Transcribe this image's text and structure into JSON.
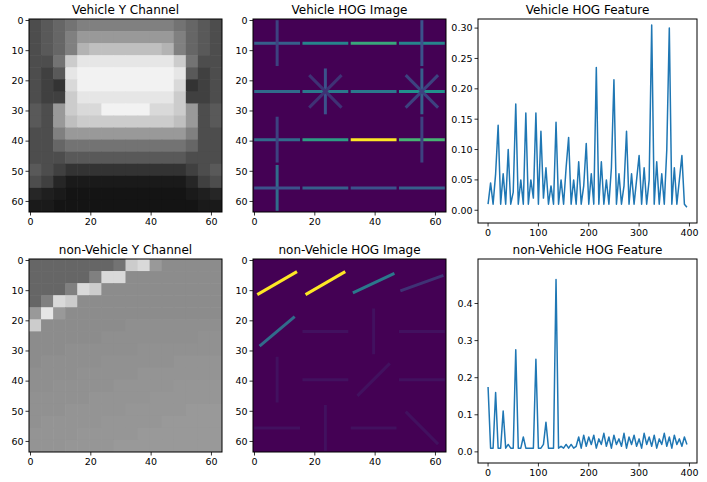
{
  "chart_data": [
    {
      "type": "heatmap",
      "title": "Vehicle Y Channel",
      "color": "gray",
      "xlim": [
        -0.5,
        63.5
      ],
      "ylim": [
        63.5,
        -0.5
      ],
      "xticks": [
        0,
        20,
        40,
        60
      ],
      "yticks": [
        0,
        10,
        20,
        30,
        40,
        50,
        60
      ],
      "cells": [
        [
          0.3,
          0.35,
          0.4,
          0.45,
          0.5,
          0.5,
          0.5,
          0.5,
          0.5,
          0.5,
          0.5,
          0.5,
          0.45,
          0.4,
          0.35,
          0.3
        ],
        [
          0.3,
          0.35,
          0.4,
          0.5,
          0.6,
          0.6,
          0.6,
          0.6,
          0.6,
          0.6,
          0.6,
          0.6,
          0.5,
          0.4,
          0.35,
          0.3
        ],
        [
          0.3,
          0.35,
          0.4,
          0.5,
          0.7,
          0.75,
          0.75,
          0.75,
          0.75,
          0.75,
          0.75,
          0.7,
          0.5,
          0.4,
          0.35,
          0.3
        ],
        [
          0.3,
          0.3,
          0.45,
          0.8,
          0.9,
          0.9,
          0.9,
          0.9,
          0.9,
          0.9,
          0.9,
          0.9,
          0.8,
          0.45,
          0.3,
          0.3
        ],
        [
          0.3,
          0.25,
          0.35,
          0.9,
          0.95,
          0.95,
          0.95,
          0.95,
          0.95,
          0.95,
          0.95,
          0.95,
          0.9,
          0.35,
          0.25,
          0.3
        ],
        [
          0.3,
          0.25,
          0.2,
          0.85,
          0.95,
          0.95,
          0.95,
          0.95,
          0.95,
          0.95,
          0.95,
          0.95,
          0.85,
          0.2,
          0.25,
          0.3
        ],
        [
          0.3,
          0.25,
          0.25,
          0.8,
          0.9,
          0.9,
          0.9,
          0.9,
          0.9,
          0.9,
          0.9,
          0.9,
          0.8,
          0.25,
          0.25,
          0.3
        ],
        [
          0.35,
          0.3,
          0.6,
          0.8,
          0.85,
          0.85,
          0.95,
          0.95,
          0.95,
          0.95,
          0.85,
          0.85,
          0.8,
          0.6,
          0.3,
          0.35
        ],
        [
          0.35,
          0.3,
          0.6,
          0.75,
          0.8,
          0.8,
          0.8,
          0.8,
          0.8,
          0.8,
          0.8,
          0.8,
          0.75,
          0.6,
          0.3,
          0.35
        ],
        [
          0.3,
          0.3,
          0.5,
          0.6,
          0.6,
          0.6,
          0.6,
          0.6,
          0.6,
          0.6,
          0.6,
          0.6,
          0.6,
          0.5,
          0.3,
          0.3
        ],
        [
          0.3,
          0.3,
          0.4,
          0.45,
          0.45,
          0.45,
          0.45,
          0.45,
          0.45,
          0.45,
          0.45,
          0.45,
          0.45,
          0.4,
          0.3,
          0.3
        ],
        [
          0.3,
          0.3,
          0.3,
          0.35,
          0.35,
          0.35,
          0.35,
          0.35,
          0.35,
          0.35,
          0.35,
          0.35,
          0.35,
          0.3,
          0.3,
          0.3
        ],
        [
          0.35,
          0.3,
          0.25,
          0.2,
          0.2,
          0.2,
          0.2,
          0.2,
          0.2,
          0.2,
          0.2,
          0.2,
          0.2,
          0.25,
          0.3,
          0.35
        ],
        [
          0.3,
          0.25,
          0.15,
          0.1,
          0.1,
          0.1,
          0.1,
          0.1,
          0.1,
          0.1,
          0.1,
          0.1,
          0.1,
          0.15,
          0.25,
          0.3
        ],
        [
          0.15,
          0.12,
          0.1,
          0.08,
          0.08,
          0.08,
          0.08,
          0.08,
          0.08,
          0.08,
          0.08,
          0.08,
          0.08,
          0.1,
          0.12,
          0.15
        ],
        [
          0.1,
          0.1,
          0.08,
          0.08,
          0.08,
          0.08,
          0.08,
          0.08,
          0.08,
          0.08,
          0.08,
          0.08,
          0.08,
          0.08,
          0.1,
          0.1
        ]
      ]
    },
    {
      "type": "hog",
      "title": "Vehicle HOG Image",
      "color": "viridis",
      "xlim": [
        -0.5,
        63.5
      ],
      "ylim": [
        63.5,
        -0.5
      ],
      "xticks": [
        0,
        20,
        40,
        60
      ],
      "yticks": [
        0,
        10,
        20,
        30,
        40,
        50,
        60
      ],
      "cells": [
        [
          [
            [
              0,
              0.3
            ],
            [
              90,
              0.2
            ]
          ],
          [
            [
              0,
              0.45
            ]
          ],
          [
            [
              0,
              0.6
            ]
          ],
          [
            [
              0,
              0.45
            ],
            [
              90,
              0.25
            ]
          ]
        ],
        [
          [
            [
              0,
              0.35
            ]
          ],
          [
            [
              0,
              0.4
            ],
            [
              90,
              0.25
            ],
            [
              45,
              0.15
            ],
            [
              135,
              0.15
            ]
          ],
          [
            [
              0,
              0.4
            ]
          ],
          [
            [
              0,
              0.5
            ],
            [
              90,
              0.3
            ],
            [
              45,
              0.2
            ],
            [
              135,
              0.2
            ]
          ]
        ],
        [
          [
            [
              0,
              0.35
            ],
            [
              90,
              0.2
            ]
          ],
          [
            [
              0,
              0.55
            ]
          ],
          [
            [
              0,
              1.0
            ]
          ],
          [
            [
              0,
              0.65
            ],
            [
              90,
              0.2
            ]
          ]
        ],
        [
          [
            [
              90,
              0.35
            ],
            [
              0,
              0.25
            ]
          ],
          [
            [
              0,
              0.3
            ]
          ],
          [
            [
              0,
              0.25
            ]
          ],
          [
            [
              0,
              0.3
            ]
          ]
        ]
      ]
    },
    {
      "type": "line",
      "title": "Vehicle HOG Feature",
      "color": "#1f77b4",
      "xlim": [
        -20,
        415
      ],
      "ylim": [
        -0.021,
        0.315
      ],
      "xticks": [
        0,
        100,
        200,
        300,
        400
      ],
      "yticks": [
        {
          "value": 0,
          "label": "0.00"
        },
        {
          "value": 0.05,
          "label": "0.05"
        },
        {
          "value": 0.1,
          "label": "0.10"
        },
        {
          "value": 0.15,
          "label": "0.15"
        },
        {
          "value": 0.2,
          "label": "0.20"
        },
        {
          "value": 0.25,
          "label": "0.25"
        },
        {
          "value": 0.3,
          "label": "0.30"
        }
      ],
      "x": [
        0,
        5,
        10,
        15,
        20,
        25,
        30,
        35,
        40,
        45,
        50,
        55,
        60,
        65,
        70,
        75,
        80,
        85,
        90,
        95,
        100,
        105,
        110,
        115,
        120,
        125,
        130,
        135,
        140,
        145,
        150,
        155,
        160,
        165,
        170,
        175,
        180,
        185,
        190,
        195,
        200,
        205,
        210,
        215,
        220,
        225,
        230,
        235,
        240,
        245,
        250,
        255,
        260,
        265,
        270,
        275,
        280,
        285,
        290,
        295,
        300,
        305,
        310,
        315,
        320,
        325,
        330,
        335,
        340,
        345,
        350,
        355,
        360,
        365,
        370,
        375,
        380,
        385,
        390,
        395
      ],
      "values": [
        0.01,
        0.045,
        0.01,
        0.06,
        0.14,
        0.01,
        0.06,
        0.01,
        0.1,
        0.01,
        0.03,
        0.175,
        0.01,
        0.05,
        0.01,
        0.16,
        0.01,
        0.05,
        0.02,
        0.16,
        0.01,
        0.13,
        0.02,
        0.07,
        0.01,
        0.04,
        0.01,
        0.145,
        0.01,
        0.05,
        0.01,
        0.07,
        0.12,
        0.01,
        0.05,
        0.01,
        0.08,
        0.01,
        0.04,
        0.11,
        0.01,
        0.06,
        0.01,
        0.235,
        0.01,
        0.08,
        0.01,
        0.05,
        0.01,
        0.07,
        0.215,
        0.01,
        0.06,
        0.01,
        0.04,
        0.13,
        0.01,
        0.06,
        0.01,
        0.05,
        0.09,
        0.01,
        0.07,
        0.01,
        0.05,
        0.305,
        0.01,
        0.08,
        0.01,
        0.06,
        0.01,
        0.1,
        0.3,
        0.01,
        0.07,
        0.01,
        0.05,
        0.09,
        0.01,
        0.005
      ]
    },
    {
      "type": "heatmap",
      "title": "non-Vehicle Y Channel",
      "color": "gray",
      "xlim": [
        -0.5,
        63.5
      ],
      "ylim": [
        63.5,
        -0.5
      ],
      "xticks": [
        0,
        20,
        40,
        60
      ],
      "yticks": [
        0,
        10,
        20,
        30,
        40,
        50,
        60
      ],
      "cells": [
        [
          0.4,
          0.4,
          0.4,
          0.4,
          0.4,
          0.4,
          0.4,
          0.45,
          0.8,
          0.85,
          0.6,
          0.55,
          0.55,
          0.55,
          0.55,
          0.55
        ],
        [
          0.4,
          0.4,
          0.4,
          0.4,
          0.4,
          0.5,
          0.85,
          0.85,
          0.55,
          0.55,
          0.55,
          0.55,
          0.55,
          0.55,
          0.55,
          0.55
        ],
        [
          0.4,
          0.4,
          0.4,
          0.5,
          0.85,
          0.8,
          0.55,
          0.55,
          0.55,
          0.55,
          0.55,
          0.55,
          0.55,
          0.55,
          0.55,
          0.55
        ],
        [
          0.4,
          0.5,
          0.85,
          0.8,
          0.55,
          0.55,
          0.55,
          0.55,
          0.55,
          0.55,
          0.55,
          0.55,
          0.55,
          0.55,
          0.55,
          0.55
        ],
        [
          0.6,
          0.9,
          0.6,
          0.55,
          0.55,
          0.55,
          0.55,
          0.55,
          0.55,
          0.55,
          0.55,
          0.55,
          0.55,
          0.55,
          0.55,
          0.55
        ],
        [
          0.8,
          0.55,
          0.55,
          0.55,
          0.55,
          0.55,
          0.55,
          0.55,
          0.56,
          0.56,
          0.56,
          0.56,
          0.56,
          0.56,
          0.56,
          0.56
        ],
        [
          0.55,
          0.55,
          0.55,
          0.55,
          0.55,
          0.55,
          0.56,
          0.56,
          0.56,
          0.56,
          0.56,
          0.56,
          0.56,
          0.56,
          0.57,
          0.57
        ],
        [
          0.55,
          0.55,
          0.55,
          0.56,
          0.56,
          0.56,
          0.56,
          0.56,
          0.56,
          0.57,
          0.57,
          0.57,
          0.57,
          0.57,
          0.57,
          0.57
        ],
        [
          0.55,
          0.56,
          0.56,
          0.56,
          0.56,
          0.56,
          0.57,
          0.57,
          0.57,
          0.57,
          0.57,
          0.57,
          0.58,
          0.58,
          0.58,
          0.58
        ],
        [
          0.56,
          0.56,
          0.56,
          0.56,
          0.57,
          0.57,
          0.57,
          0.57,
          0.57,
          0.58,
          0.58,
          0.58,
          0.58,
          0.58,
          0.58,
          0.58
        ],
        [
          0.56,
          0.56,
          0.57,
          0.57,
          0.57,
          0.57,
          0.57,
          0.58,
          0.58,
          0.58,
          0.58,
          0.58,
          0.59,
          0.59,
          0.59,
          0.59
        ],
        [
          0.57,
          0.57,
          0.57,
          0.57,
          0.57,
          0.58,
          0.58,
          0.58,
          0.58,
          0.58,
          0.59,
          0.59,
          0.59,
          0.59,
          0.59,
          0.59
        ],
        [
          0.57,
          0.57,
          0.57,
          0.58,
          0.58,
          0.58,
          0.58,
          0.58,
          0.59,
          0.59,
          0.59,
          0.59,
          0.59,
          0.6,
          0.6,
          0.6
        ],
        [
          0.57,
          0.58,
          0.58,
          0.58,
          0.58,
          0.58,
          0.59,
          0.59,
          0.59,
          0.59,
          0.59,
          0.6,
          0.6,
          0.6,
          0.6,
          0.6
        ],
        [
          0.58,
          0.58,
          0.58,
          0.58,
          0.59,
          0.59,
          0.59,
          0.59,
          0.59,
          0.6,
          0.6,
          0.6,
          0.6,
          0.6,
          0.6,
          0.6
        ],
        [
          0.58,
          0.58,
          0.58,
          0.59,
          0.59,
          0.59,
          0.59,
          0.6,
          0.6,
          0.6,
          0.6,
          0.6,
          0.6,
          0.6,
          0.6,
          0.6
        ]
      ]
    },
    {
      "type": "hog",
      "title": "non-Vehicle HOG Image",
      "color": "viridis",
      "xlim": [
        -0.5,
        63.5
      ],
      "ylim": [
        63.5,
        -0.5
      ],
      "xticks": [
        0,
        20,
        40,
        60
      ],
      "yticks": [
        0,
        10,
        20,
        30,
        40,
        50,
        60
      ],
      "cells": [
        [
          [
            [
              30,
              1.0
            ]
          ],
          [
            [
              30,
              1.0
            ]
          ],
          [
            [
              25,
              0.4
            ]
          ],
          [
            [
              20,
              0.15
            ]
          ]
        ],
        [
          [
            [
              40,
              0.35
            ]
          ],
          [
            [
              0,
              0.05
            ]
          ],
          [
            [
              90,
              0.05
            ]
          ],
          [
            [
              0,
              0.05
            ]
          ]
        ],
        [
          [
            [
              90,
              0.05
            ]
          ],
          [
            [
              0,
              0.05
            ]
          ],
          [
            [
              45,
              0.05
            ]
          ],
          [
            [
              0,
              0.05
            ]
          ]
        ],
        [
          [
            [
              0,
              0.05
            ]
          ],
          [
            [
              90,
              0.05
            ]
          ],
          [
            [
              0,
              0.05
            ]
          ],
          [
            [
              135,
              0.05
            ]
          ]
        ]
      ]
    },
    {
      "type": "line",
      "title": "non-Vehicle HOG Feature",
      "color": "#1f77b4",
      "xlim": [
        -20,
        415
      ],
      "ylim": [
        -0.03,
        0.52
      ],
      "xticks": [
        0,
        100,
        200,
        300,
        400
      ],
      "yticks": [
        {
          "value": 0,
          "label": "0.0"
        },
        0.1,
        0.2,
        0.3,
        0.4
      ],
      "x": [
        0,
        5,
        10,
        15,
        20,
        25,
        30,
        35,
        40,
        45,
        50,
        55,
        60,
        65,
        70,
        75,
        80,
        85,
        90,
        95,
        100,
        105,
        110,
        115,
        120,
        125,
        130,
        135,
        140,
        145,
        150,
        155,
        160,
        165,
        170,
        175,
        180,
        185,
        190,
        195,
        200,
        205,
        210,
        215,
        220,
        225,
        230,
        235,
        240,
        245,
        250,
        255,
        260,
        265,
        270,
        275,
        280,
        285,
        290,
        295,
        300,
        305,
        310,
        315,
        320,
        325,
        330,
        335,
        340,
        345,
        350,
        355,
        360,
        365,
        370,
        375,
        380,
        385,
        390,
        395
      ],
      "values": [
        0.175,
        0.01,
        0.01,
        0.16,
        0.01,
        0.01,
        0.11,
        0.01,
        0.02,
        0.01,
        0.01,
        0.275,
        0.01,
        0.01,
        0.04,
        0.01,
        0.01,
        0.01,
        0.01,
        0.25,
        0.01,
        0.01,
        0.02,
        0.08,
        0.01,
        0.01,
        0.01,
        0.465,
        0.01,
        0.015,
        0.01,
        0.02,
        0.01,
        0.02,
        0.01,
        0.015,
        0.04,
        0.01,
        0.045,
        0.015,
        0.04,
        0.02,
        0.045,
        0.01,
        0.035,
        0.02,
        0.05,
        0.015,
        0.04,
        0.01,
        0.045,
        0.02,
        0.035,
        0.015,
        0.05,
        0.01,
        0.04,
        0.02,
        0.045,
        0.015,
        0.035,
        0.01,
        0.05,
        0.02,
        0.04,
        0.015,
        0.045,
        0.01,
        0.035,
        0.02,
        0.05,
        0.015,
        0.04,
        0.01,
        0.045,
        0.02,
        0.035,
        0.015,
        0.04,
        0.02
      ]
    }
  ]
}
